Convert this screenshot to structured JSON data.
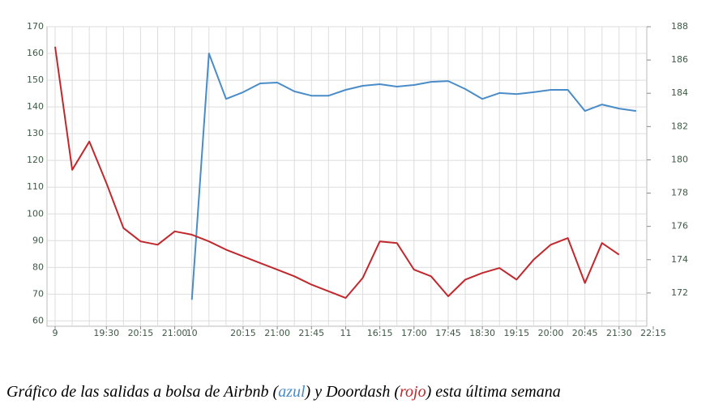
{
  "chart_data": {
    "type": "line",
    "caption": [
      "Gráfico de las salidas a bolsa de Airbnb (",
      "azul",
      ") y Doordash (",
      "rojo",
      ") esta última semana"
    ],
    "categories": [
      "9",
      null,
      null,
      "19:30",
      null,
      "20:15",
      null,
      "21:00",
      "10",
      null,
      null,
      "20:15",
      null,
      "21:00",
      null,
      "21:45",
      null,
      "11",
      null,
      "16:15",
      null,
      "17:00",
      null,
      "17:45",
      null,
      "18:30",
      null,
      "19:15",
      null,
      "20:00",
      null,
      "20:45",
      null,
      "21:30",
      null,
      "22:15"
    ],
    "series": [
      {
        "color": "#4a8cc8",
        "axis": "y",
        "values": [
          null,
          null,
          null,
          null,
          null,
          null,
          null,
          null,
          67.9,
          160,
          143,
          145.5,
          148.8,
          149.1,
          145.8,
          144.2,
          144.2,
          146.4,
          147.9,
          148.5,
          147.6,
          148.2,
          149.4,
          149.7,
          146.7,
          143,
          145.2,
          144.8,
          145.5,
          146.4,
          146.4,
          138.5,
          140.9,
          139.4,
          138.5,
          null
        ]
      },
      {
        "color": "#c0282d",
        "axis": "y2",
        "values": [
          186.8,
          179.4,
          181.1,
          178.6,
          175.9,
          175.1,
          174.9,
          175.7,
          175.5,
          175.1,
          174.6,
          174.2,
          173.8,
          173.4,
          173,
          172.5,
          172.1,
          171.7,
          172.9,
          175.1,
          175,
          173.4,
          173,
          171.8,
          172.8,
          173.2,
          173.5,
          172.8,
          174,
          174.9,
          175.3,
          172.6,
          175,
          174.3,
          null,
          null
        ]
      }
    ],
    "ylim": [
      58,
      170
    ],
    "yticks": [
      60,
      70,
      80,
      90,
      100,
      110,
      120,
      130,
      140,
      150,
      160,
      170
    ],
    "y2lim": [
      170,
      188
    ],
    "y2ticks": [
      172,
      174,
      176,
      178,
      180,
      182,
      184,
      186,
      188
    ],
    "grid": true
  }
}
